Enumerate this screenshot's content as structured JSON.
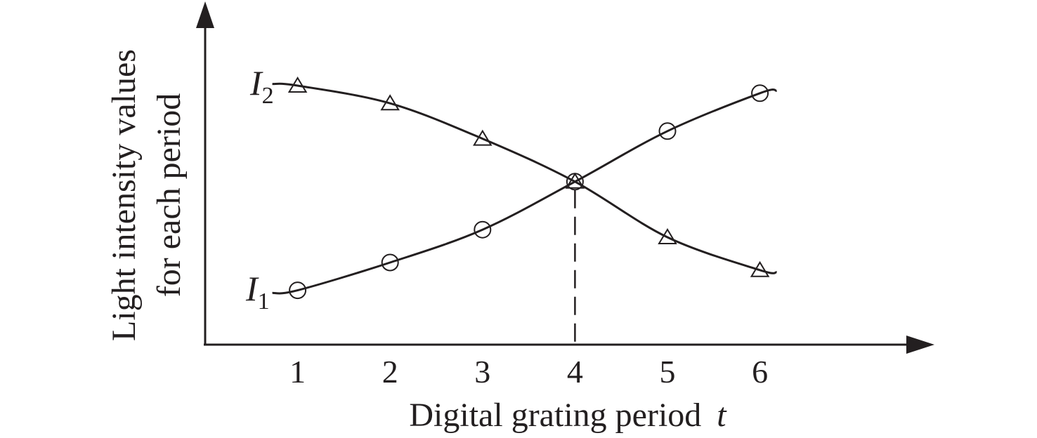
{
  "chart_data": {
    "type": "line",
    "xlabel": "Digital grating period",
    "xlabel_var": "t",
    "ylabel_lines": [
      "Light intensity values",
      "for each period"
    ],
    "x": [
      1,
      2,
      3,
      4,
      5,
      6
    ],
    "xlim": [
      0,
      7.5
    ],
    "ylim": [
      0,
      1
    ],
    "grid": false,
    "series": [
      {
        "name": "I",
        "subscript": "1",
        "marker": "circle",
        "values": [
          0.19,
          0.3,
          0.43,
          0.62,
          0.82,
          0.97
        ]
      },
      {
        "name": "I",
        "subscript": "2",
        "marker": "triangle",
        "values": [
          1.0,
          0.93,
          0.79,
          0.62,
          0.4,
          0.27
        ]
      }
    ],
    "annotation": {
      "type": "dashed-vertical",
      "x": 4
    }
  }
}
